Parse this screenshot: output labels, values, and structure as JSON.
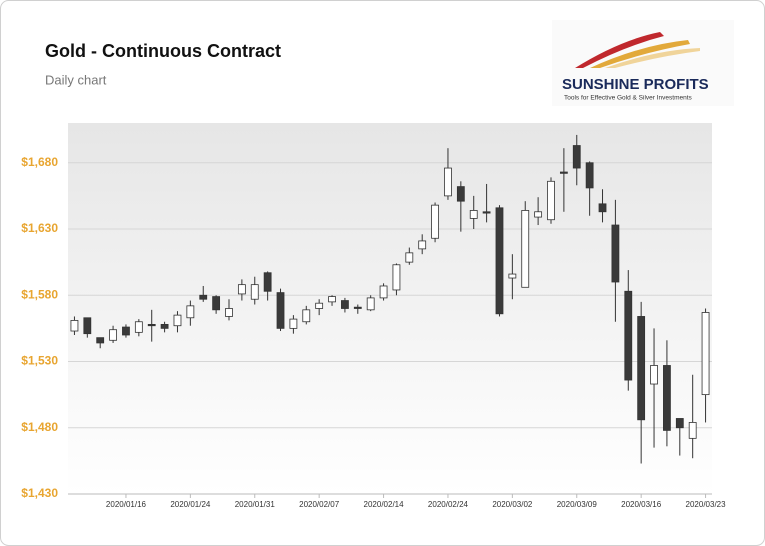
{
  "chart_data": {
    "type": "candlestick",
    "title": "Gold - Continuous Contract",
    "subtitle": "Daily chart",
    "categories": [
      null,
      null,
      null,
      null,
      "2020/01/16",
      null,
      null,
      null,
      null,
      "2020/01/24",
      null,
      null,
      null,
      null,
      "2020/01/31",
      null,
      null,
      null,
      null,
      "2020/02/07",
      null,
      null,
      null,
      null,
      "2020/02/14",
      null,
      null,
      null,
      null,
      "2020/02/24",
      null,
      null,
      null,
      null,
      "2020/03/02",
      null,
      null,
      null,
      null,
      "2020/03/09",
      null,
      null,
      null,
      null,
      "2020/03/16",
      null,
      null,
      null,
      null,
      "2020/03/23"
    ],
    "open": [
      1553,
      1563,
      1548,
      1546,
      1556,
      1552,
      1558,
      1558,
      1557,
      1563,
      1580,
      1579,
      1564,
      1581,
      1577,
      1597,
      1582,
      1555,
      1560,
      1570,
      1575,
      1576,
      1571,
      1569,
      1578,
      1584,
      1605,
      1615,
      1623,
      1655,
      1662,
      1638,
      1643,
      1646,
      1593,
      1586,
      1639,
      1637,
      1673,
      1693,
      1680,
      1649,
      1633,
      1583,
      1564,
      1513,
      1527,
      1487,
      1472,
      1505
    ],
    "high": [
      1564,
      1563,
      1548,
      1557,
      1558,
      1562,
      1569,
      1560,
      1568,
      1576,
      1587,
      1580,
      1577,
      1592,
      1594,
      1598,
      1585,
      1565,
      1572,
      1577,
      1580,
      1578,
      1573,
      1580,
      1589,
      1604,
      1616,
      1626,
      1650,
      1691,
      1666,
      1655,
      1664,
      1648,
      1611,
      1651,
      1654,
      1669,
      1691,
      1701,
      1681,
      1660,
      1652,
      1599,
      1575,
      1555,
      1546,
      1487,
      1520,
      1570
    ],
    "low": [
      1550,
      1548,
      1540,
      1544,
      1548,
      1549,
      1545,
      1552,
      1552,
      1557,
      1575,
      1566,
      1561,
      1576,
      1573,
      1576,
      1553,
      1551,
      1558,
      1565,
      1572,
      1567,
      1566,
      1568,
      1576,
      1580,
      1603,
      1611,
      1620,
      1652,
      1628,
      1630,
      1635,
      1564,
      1577,
      1586,
      1633,
      1634,
      1643,
      1663,
      1640,
      1635,
      1560,
      1508,
      1453,
      1465,
      1466,
      1459,
      1457,
      1484
    ],
    "close": [
      1561,
      1551,
      1544,
      1554,
      1550,
      1560,
      1557,
      1555,
      1565,
      1572,
      1577,
      1569,
      1570,
      1588,
      1588,
      1583,
      1555,
      1562,
      1569,
      1574,
      1579,
      1570,
      1570,
      1578,
      1587,
      1603,
      1612,
      1621,
      1648,
      1676,
      1651,
      1644,
      1642,
      1566,
      1596,
      1644,
      1643,
      1666,
      1672,
      1676,
      1661,
      1643,
      1590,
      1516,
      1486,
      1527,
      1478,
      1480,
      1484,
      1567
    ],
    "up_color": "#ffffff",
    "down_color": "#3a3a3a",
    "ylim": [
      1430,
      1710
    ],
    "yticks": [
      {
        "value": 1430,
        "label": "$1,430"
      },
      {
        "value": 1480,
        "label": "$1,480"
      },
      {
        "value": 1530,
        "label": "$1,530"
      },
      {
        "value": 1580,
        "label": "$1,580"
      },
      {
        "value": 1630,
        "label": "$1,630"
      },
      {
        "value": 1680,
        "label": "$1,680"
      }
    ],
    "grid": true
  },
  "logo": {
    "name": "SUNSHINE PROFITS",
    "tagline": "Tools for Effective Gold & Silver Investments"
  }
}
